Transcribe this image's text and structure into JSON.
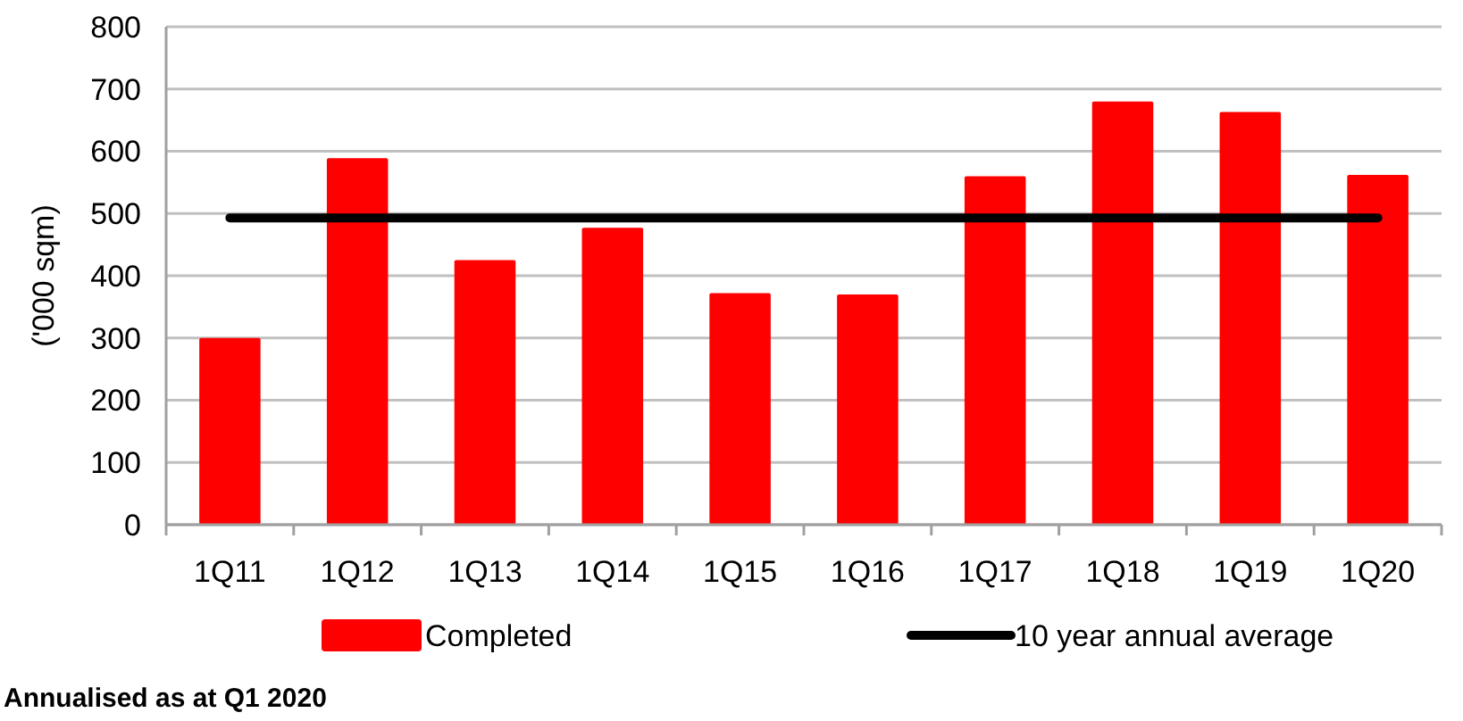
{
  "chart_data": {
    "type": "bar",
    "ylabel": "('000 sqm)",
    "categories": [
      "1Q11",
      "1Q12",
      "1Q13",
      "1Q14",
      "1Q15",
      "1Q16",
      "1Q17",
      "1Q18",
      "1Q19",
      "1Q20"
    ],
    "series": [
      {
        "name": "Completed",
        "color": "#ff0000",
        "values": [
          300,
          589,
          425,
          477,
          372,
          370,
          560,
          680,
          663,
          562
        ]
      },
      {
        "name": "10 year annual average",
        "type": "line",
        "color": "#000000",
        "values": [
          493,
          493,
          493,
          493,
          493,
          493,
          493,
          493,
          493,
          493
        ]
      }
    ],
    "ylim": [
      0,
      800
    ],
    "yticks": [
      0,
      100,
      200,
      300,
      400,
      500,
      600,
      700,
      800
    ],
    "grid": "y",
    "legend": "bottom",
    "annotations": [
      "Annualised as at Q1 2020"
    ]
  }
}
